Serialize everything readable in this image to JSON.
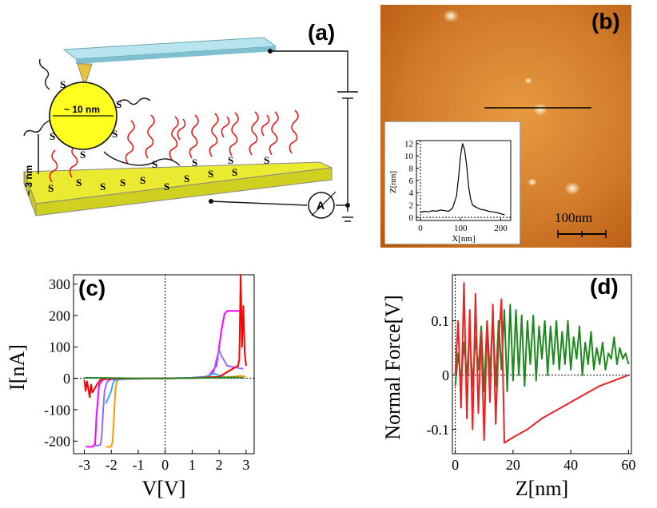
{
  "figure": {
    "panel_a": {
      "label": "(a)",
      "size_label": "~ 10 nm",
      "height_label": "~ 3 nm",
      "sulfur_symbol": "S",
      "ammeter_label": "A"
    },
    "panel_b": {
      "label": "(b)",
      "scale_bar_label": "100nm",
      "colors": {
        "bg_dark": "#b85a10",
        "bg_light": "#e89a40",
        "particle": "#fff2c8"
      }
    },
    "panel_c": {
      "label": "(c)"
    },
    "panel_d": {
      "label": "(d)"
    }
  },
  "chart_data": [
    {
      "id": "inset-b",
      "type": "line",
      "xlabel": "X[nm]",
      "ylabel": "Z[nm]",
      "xlim": [
        -10,
        225
      ],
      "ylim": [
        -0.5,
        12.5
      ],
      "xticks": [
        0,
        100,
        200
      ],
      "yticks": [
        0,
        2,
        4,
        6,
        8,
        10,
        12
      ],
      "series": [
        {
          "name": "profile",
          "color": "#000000",
          "x": [
            0,
            10,
            20,
            30,
            40,
            50,
            60,
            70,
            80,
            90,
            95,
            100,
            105,
            110,
            115,
            120,
            125,
            130,
            140,
            150,
            160,
            170,
            180,
            190,
            200,
            210
          ],
          "y": [
            0.8,
            1.0,
            0.9,
            1.1,
            1.0,
            1.2,
            1.1,
            1.0,
            1.5,
            3.5,
            6.5,
            10.0,
            12.0,
            11.0,
            8.5,
            5.0,
            3.0,
            2.0,
            1.6,
            1.3,
            1.2,
            1.0,
            0.9,
            0.8,
            0.6,
            0.4
          ]
        }
      ]
    },
    {
      "id": "plot-c",
      "type": "line",
      "xlabel": "V[V]",
      "ylabel": "I[nA]",
      "xlim": [
        -3.4,
        3.3
      ],
      "ylim": [
        -240,
        330
      ],
      "xticks": [
        -3,
        -2,
        -1,
        0,
        1,
        2,
        3
      ],
      "yticks": [
        -200,
        -100,
        0,
        100,
        200,
        300
      ],
      "series": [
        {
          "name": "magenta",
          "color": "#ff00ff",
          "x": [
            -2.95,
            -2.7,
            -2.6,
            -2.55,
            -2.45,
            -2.3,
            -2.0,
            -1.0,
            0.0,
            1.0,
            1.6,
            1.9,
            2.1,
            2.2,
            2.3,
            2.5,
            2.9
          ],
          "y": [
            -218,
            -218,
            -210,
            -120,
            -20,
            -3,
            -2,
            -1,
            0,
            2,
            6,
            40,
            160,
            205,
            215,
            215,
            215
          ]
        },
        {
          "name": "orange",
          "color": "#ff9900",
          "x": [
            -2.2,
            -2.0,
            -1.95,
            -1.9,
            -1.85,
            -1.8,
            -1.7,
            -1.0,
            0.0,
            1.0,
            2.0,
            2.5,
            2.8,
            3.0
          ],
          "y": [
            -218,
            -218,
            -200,
            -120,
            -40,
            -10,
            -3,
            -1,
            0,
            1,
            3,
            5,
            8,
            5
          ]
        },
        {
          "name": "violet",
          "color": "#9966ff",
          "x": [
            -2.6,
            -2.4,
            -2.35,
            -2.3,
            -2.25,
            -2.15,
            -2.0,
            -1.0,
            0.0,
            1.0,
            1.6,
            1.8,
            1.9,
            2.0,
            2.1,
            2.3,
            2.6,
            2.9
          ],
          "y": [
            -215,
            -212,
            -180,
            -100,
            -40,
            -10,
            -3,
            -1,
            0,
            2,
            5,
            20,
            60,
            90,
            70,
            40,
            35,
            30
          ]
        },
        {
          "name": "blue",
          "color": "#33aaff",
          "x": [
            -2.2,
            -2.1,
            -2.0,
            -1.95,
            -1.9,
            -1.8,
            -1.5,
            -1.0,
            0.0,
            1.0,
            1.5,
            1.8,
            2.0,
            2.2
          ],
          "y": [
            -80,
            -60,
            -40,
            -20,
            -8,
            -4,
            -2,
            -1,
            0,
            2,
            5,
            15,
            10,
            6
          ]
        },
        {
          "name": "red",
          "color": "#ff0000",
          "x": [
            -3.0,
            -2.95,
            -2.9,
            -2.85,
            -2.8,
            -2.75,
            -2.7,
            -2.6,
            -2.5,
            -2.4,
            -2.3,
            -2.0,
            -1.0,
            0.0,
            1.0,
            2.0,
            2.3,
            2.5,
            2.6,
            2.7,
            2.75,
            2.8,
            2.85,
            2.9,
            2.95,
            3.0
          ],
          "y": [
            -5,
            -40,
            -10,
            -35,
            -60,
            -20,
            -45,
            -30,
            -15,
            -5,
            -2,
            -1,
            0,
            0,
            1,
            5,
            20,
            30,
            35,
            40,
            60,
            330,
            100,
            230,
            80,
            40
          ]
        },
        {
          "name": "green",
          "color": "#228822",
          "x": [
            -3.0,
            -2.0,
            -1.0,
            0.0,
            1.0,
            2.0,
            2.5,
            2.9
          ],
          "y": [
            2,
            1,
            0,
            0,
            1,
            2,
            3,
            2
          ]
        }
      ]
    },
    {
      "id": "plot-d",
      "type": "line",
      "xlabel": "Z[nm]",
      "ylabel": "Normal Force[V]",
      "xlim": [
        -1,
        61
      ],
      "ylim": [
        -0.145,
        0.185
      ],
      "xticks": [
        0,
        20,
        40,
        60
      ],
      "yticks": [
        -0.1,
        0,
        0.1
      ],
      "series": [
        {
          "name": "green",
          "color": "#1e8a1e",
          "x": [
            0,
            1,
            2,
            3,
            4,
            5,
            6,
            7,
            8,
            9,
            10,
            11,
            12,
            13,
            14,
            15,
            16,
            17,
            18,
            19,
            20,
            21,
            22,
            23,
            24,
            25,
            26,
            27,
            28,
            29,
            30,
            31,
            32,
            33,
            34,
            35,
            36,
            37,
            38,
            39,
            40,
            41,
            42,
            43,
            44,
            45,
            46,
            47,
            48,
            49,
            50,
            51,
            52,
            53,
            54,
            55,
            56,
            57,
            58,
            59,
            60
          ],
          "y": [
            -0.02,
            0.04,
            -0.01,
            0.06,
            0.0,
            0.08,
            -0.02,
            0.07,
            0.01,
            0.09,
            -0.03,
            0.1,
            0.0,
            0.11,
            -0.02,
            0.1,
            0.01,
            0.12,
            -0.03,
            0.13,
            -0.01,
            0.12,
            0.0,
            0.11,
            -0.02,
            0.1,
            0.02,
            0.11,
            -0.01,
            0.09,
            0.03,
            0.1,
            0.0,
            0.09,
            0.02,
            0.1,
            0.01,
            0.08,
            0.02,
            0.1,
            0.01,
            0.07,
            0.03,
            0.09,
            0.0,
            0.06,
            0.02,
            0.08,
            0.01,
            0.05,
            0.02,
            0.06,
            0.01,
            0.04,
            0.03,
            0.07,
            0.02,
            0.05,
            0.03,
            0.04,
            0.02
          ]
        },
        {
          "name": "red",
          "color": "#ee2222",
          "x": [
            0,
            1,
            2,
            3,
            4,
            5,
            6,
            7,
            8,
            9,
            10,
            11,
            12,
            13,
            14,
            15,
            16,
            17,
            20,
            25,
            30,
            35,
            40,
            45,
            50,
            55,
            60
          ],
          "y": [
            0.0,
            0.1,
            -0.06,
            0.17,
            -0.08,
            0.12,
            -0.1,
            0.15,
            -0.07,
            0.08,
            -0.12,
            0.1,
            -0.05,
            0.13,
            -0.09,
            0.06,
            0.14,
            -0.125,
            -0.115,
            -0.1,
            -0.08,
            -0.065,
            -0.05,
            -0.035,
            -0.02,
            -0.01,
            0.0
          ]
        }
      ]
    }
  ]
}
